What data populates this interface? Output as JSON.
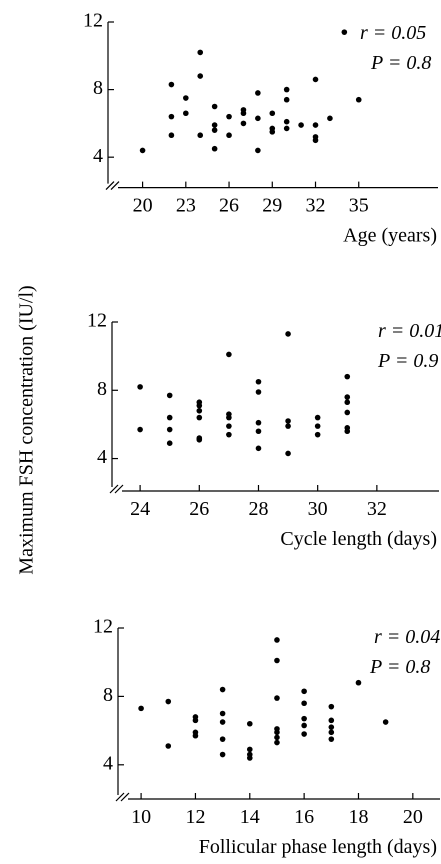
{
  "ylabel": "Maximum FSH concentration (IU/l)",
  "chart_data": [
    {
      "type": "scatter",
      "xlabel": "Age (years)",
      "annotations": [
        "r = 0.05",
        "P = 0.8"
      ],
      "color": "#000000",
      "xlim": [
        17.6,
        40.5
      ],
      "xticks": [
        20,
        23,
        26,
        29,
        32,
        35
      ],
      "ylim": [
        2.2,
        12
      ],
      "yticks": [
        4,
        8,
        12
      ],
      "x": [
        20,
        22,
        22,
        22,
        23,
        23,
        24,
        24,
        24,
        25,
        25,
        25,
        25,
        26,
        26,
        27,
        27,
        27,
        28,
        28,
        28,
        29,
        29,
        29,
        30,
        30,
        30,
        30,
        31,
        32,
        32,
        32,
        32,
        33,
        34,
        35
      ],
      "values": [
        4.4,
        8.3,
        6.4,
        5.3,
        7.5,
        6.6,
        10.2,
        8.8,
        5.3,
        7.0,
        5.9,
        5.6,
        4.5,
        6.4,
        5.3,
        6.8,
        6.6,
        6.0,
        7.8,
        6.3,
        4.4,
        6.6,
        5.7,
        5.5,
        8.0,
        7.4,
        6.1,
        5.7,
        5.9,
        8.6,
        5.9,
        5.2,
        5.0,
        6.3,
        11.4,
        7.4
      ]
    },
    {
      "type": "scatter",
      "xlabel": "Cycle length (days)",
      "annotations": [
        "r = 0.01",
        "P = 0.9"
      ],
      "color": "#000000",
      "xlim": [
        23.05,
        34.1
      ],
      "xticks": [
        24,
        26,
        28,
        30,
        32
      ],
      "ylim": [
        2.1,
        12
      ],
      "yticks": [
        4,
        8,
        12
      ],
      "x": [
        24,
        24,
        25,
        25,
        25,
        25,
        26,
        26,
        26,
        26,
        26,
        26,
        27,
        27,
        27,
        27,
        27,
        28,
        28,
        28,
        28,
        28,
        29,
        29,
        29,
        29,
        30,
        30,
        30,
        31,
        31,
        31,
        31,
        31,
        31
      ],
      "values": [
        8.2,
        5.7,
        7.7,
        6.4,
        5.7,
        4.9,
        7.3,
        7.1,
        6.8,
        6.4,
        5.2,
        5.1,
        10.1,
        6.6,
        6.4,
        5.9,
        5.4,
        8.5,
        7.9,
        6.1,
        5.6,
        4.6,
        11.3,
        6.2,
        5.9,
        4.3,
        6.4,
        5.9,
        5.4,
        8.8,
        7.6,
        7.3,
        6.7,
        5.8,
        5.6
      ]
    },
    {
      "type": "scatter",
      "xlabel": "Follicular phase length (days)",
      "annotations": [
        "r = 0.04",
        "P = 0.8"
      ],
      "color": "#000000",
      "xlim": [
        9.15,
        21
      ],
      "xticks": [
        10,
        12,
        14,
        16,
        18,
        20
      ],
      "ylim": [
        2,
        12
      ],
      "yticks": [
        4,
        8,
        12
      ],
      "x": [
        10,
        11,
        11,
        12,
        12,
        12,
        12,
        13,
        13,
        13,
        13,
        13,
        14,
        14,
        14,
        14,
        15,
        15,
        15,
        15,
        15,
        15,
        15,
        16,
        16,
        16,
        16,
        16,
        17,
        17,
        17,
        17,
        17,
        18,
        19
      ],
      "values": [
        7.3,
        7.7,
        5.1,
        6.8,
        6.6,
        5.9,
        5.7,
        8.4,
        7.0,
        6.5,
        5.5,
        4.6,
        6.4,
        4.9,
        4.6,
        4.4,
        11.3,
        10.1,
        7.9,
        6.1,
        5.9,
        5.6,
        5.3,
        8.3,
        7.6,
        6.7,
        6.3,
        5.8,
        7.4,
        6.6,
        6.2,
        5.9,
        5.5,
        8.8,
        6.5
      ]
    }
  ]
}
